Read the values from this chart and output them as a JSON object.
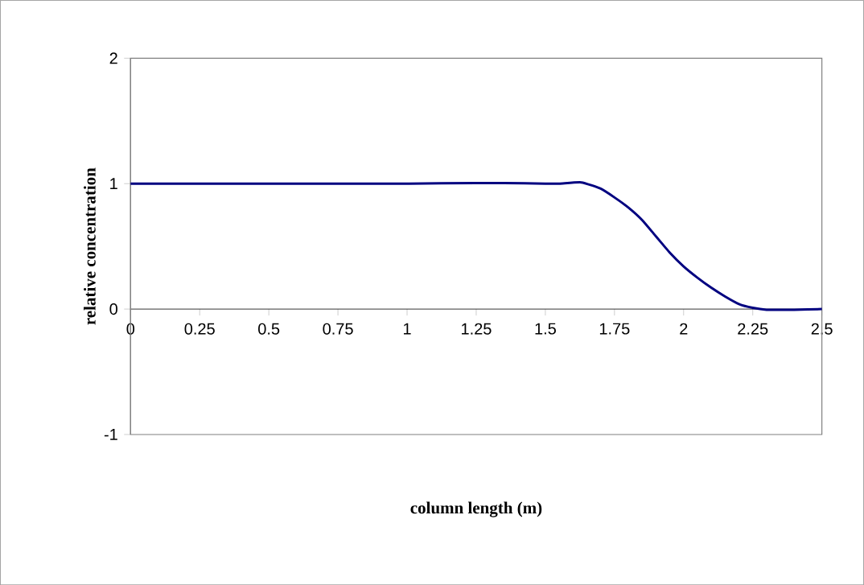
{
  "chart_data": {
    "type": "line",
    "xlabel": "column length (m)",
    "ylabel": "relative concentration",
    "x": [
      0,
      0.25,
      0.5,
      0.75,
      1,
      1.25,
      1.35,
      1.5,
      1.55,
      1.63,
      1.7,
      1.75,
      1.8,
      1.85,
      1.9,
      1.95,
      2.0,
      2.05,
      2.1,
      2.15,
      2.2,
      2.25,
      2.3,
      2.4,
      2.5
    ],
    "series": [
      {
        "color": "#000080",
        "values": [
          1,
          1,
          1,
          1,
          1,
          1.005,
          1.005,
          1.0,
          1.0,
          1.01,
          0.96,
          0.89,
          0.81,
          0.71,
          0.58,
          0.45,
          0.34,
          0.25,
          0.17,
          0.1,
          0.04,
          0.01,
          -0.005,
          -0.005,
          0
        ]
      }
    ],
    "xlim": [
      0,
      2.5
    ],
    "ylim": [
      -1,
      2
    ],
    "xticks": [
      0,
      0.25,
      0.5,
      0.75,
      1,
      1.25,
      1.5,
      1.75,
      2,
      2.25,
      2.5
    ],
    "yticks": [
      -1,
      0,
      1,
      2
    ],
    "grid": false,
    "marker": "none",
    "line_style": "solid"
  }
}
